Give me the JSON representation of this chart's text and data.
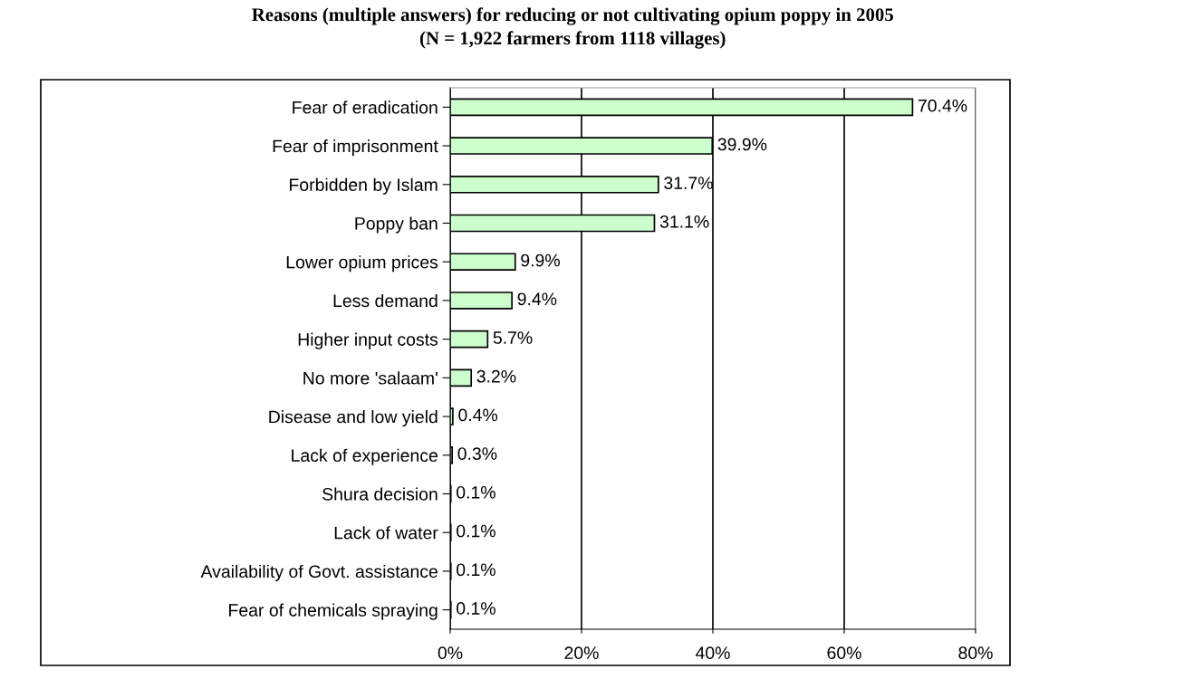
{
  "chart_data": {
    "type": "bar",
    "orientation": "horizontal",
    "title": "Reasons (multiple answers) for reducing or not cultivating opium poppy in 2005",
    "subtitle": "(N = 1,922 farmers from 1118 villages)",
    "categories": [
      "Fear of eradication",
      "Fear of imprisonment",
      "Forbidden by Islam",
      "Poppy ban",
      "Lower opium prices",
      "Less demand",
      "Higher input costs",
      "No more 'salaam'",
      "Disease and low yield",
      "Lack of experience",
      "Shura decision",
      "Lack of water",
      "Availability of Govt. assistance",
      "Fear of chemicals spraying"
    ],
    "values": [
      70.4,
      39.9,
      31.7,
      31.1,
      9.9,
      9.4,
      5.7,
      3.2,
      0.4,
      0.3,
      0.1,
      0.1,
      0.1,
      0.1
    ],
    "value_labels": [
      "70.4%",
      "39.9%",
      "31.7%",
      "31.1%",
      "9.9%",
      "9.4%",
      "5.7%",
      "3.2%",
      "0.4%",
      "0.3%",
      "0.1%",
      "0.1%",
      "0.1%",
      "0.1%"
    ],
    "color": "#ccffcc",
    "xlim": [
      0,
      80
    ],
    "xticks": [
      {
        "value": 0,
        "label": "0%"
      },
      {
        "value": 20,
        "label": "20%"
      },
      {
        "value": 40,
        "label": "40%"
      },
      {
        "value": 60,
        "label": "60%"
      },
      {
        "value": 80,
        "label": "80%"
      }
    ],
    "grid": "x",
    "legend": false
  }
}
